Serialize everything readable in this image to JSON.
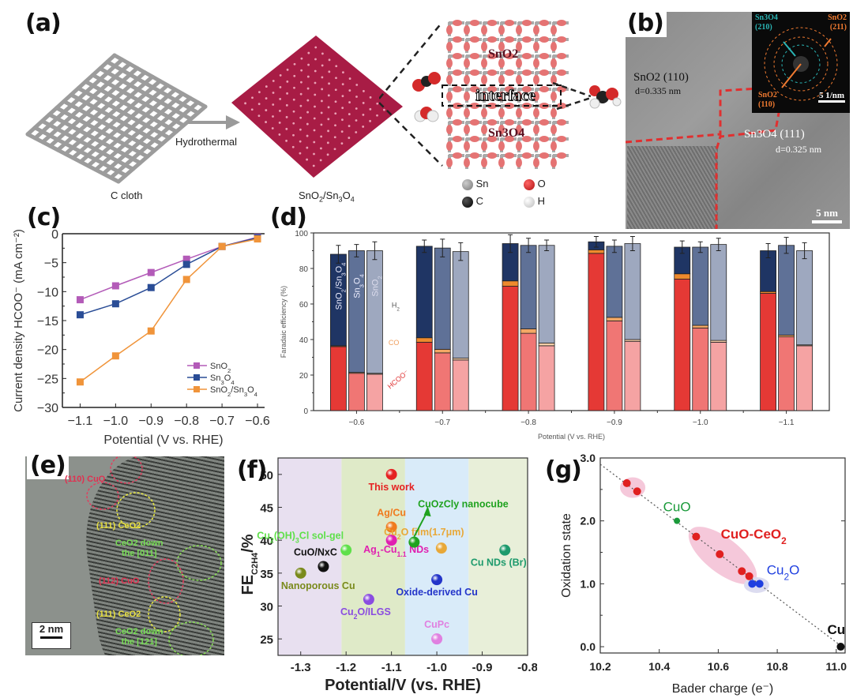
{
  "figure": {
    "panel_labels": [
      "(a)",
      "(b)",
      "(c)",
      "(d)",
      "(e)",
      "(f)",
      "(g)"
    ]
  },
  "panel_a": {
    "left_caption": "C cloth",
    "arrow_label": "Hydrothermal",
    "right_caption": "SnO2/Sn3O4",
    "structure_labels": {
      "top": "SnO2",
      "middle": "interface",
      "bottom": "Sn3O4"
    },
    "legend": [
      {
        "label": "Sn",
        "color": "#8f8f8f"
      },
      {
        "label": "O",
        "color": "#d42a2a"
      },
      {
        "label": "C",
        "color": "#111111"
      },
      {
        "label": "H",
        "color": "#eeeeee"
      }
    ]
  },
  "panel_b": {
    "labels": {
      "sno2_110": "SnO2 (110)",
      "d1": "d=0.335 nm",
      "sn3o4_111": "Sn3O4 (111)",
      "d2": "d=0.325 nm",
      "scale": "5 nm"
    },
    "inset": {
      "sn3o4_210": [
        "Sn3O4",
        "(210)"
      ],
      "sno2_211": [
        "SnO2",
        "(211)"
      ],
      "sno2_110": [
        "SnO2",
        "(110)"
      ],
      "scale": "5 1/nm"
    }
  },
  "panel_e": {
    "labels": [
      "(110) CuO",
      "(111) CeO2",
      "CeO2 down",
      "the [011]",
      "(112) CuO",
      "(111) CeO2",
      "CeO2 down",
      "the [121]"
    ],
    "scale": "2 nm"
  },
  "chart_data": [
    {
      "id": "c",
      "type": "line",
      "xlabel": "Potential (V vs. RHE)",
      "ylabel": "Current density HCOO⁻ (mA cm⁻²)",
      "x": [
        -1.1,
        -1.0,
        -0.9,
        -0.8,
        -0.7,
        -0.6
      ],
      "xlim": [
        -1.15,
        -0.58
      ],
      "ylim": [
        -30,
        0
      ],
      "xticks": [
        "-1.1",
        "-1.0",
        "-0.9",
        "-0.8",
        "-0.7",
        "-0.6"
      ],
      "yticks": [
        "0",
        "-5",
        "-10",
        "-15",
        "-20",
        "-25",
        "-30"
      ],
      "legend_position": "lower-right",
      "series": [
        {
          "name": "SnO2",
          "color": "#b35bb8",
          "values": [
            -11.4,
            -9.0,
            -6.7,
            -4.4,
            -2.2,
            -0.6
          ]
        },
        {
          "name": "Sn3O4",
          "color": "#2a4d96",
          "values": [
            -14.0,
            -12.1,
            -9.3,
            -5.3,
            -2.2,
            -0.7
          ]
        },
        {
          "name": "SnO2/Sn3O4",
          "color": "#f0943a",
          "values": [
            -25.6,
            -21.1,
            -16.8,
            -7.9,
            -2.2,
            -0.9
          ]
        }
      ]
    },
    {
      "id": "d",
      "type": "bar",
      "stacked": true,
      "xlabel": "Potential (V vs. RHE)",
      "ylabel": "Faradaic efficiency (%)",
      "categories": [
        "-0.6",
        "-0.7",
        "-0.8",
        "-0.9",
        "-1.0",
        "-1.1"
      ],
      "ylim": [
        0,
        100
      ],
      "yticks": [
        "0",
        "20",
        "40",
        "60",
        "80",
        "100"
      ],
      "samples": [
        "SnO2/Sn3O4",
        "Sn3O4",
        "SnO2"
      ],
      "annotations": {
        "h2": "H2",
        "co": "CO",
        "hcoo": "HCOO⁻"
      },
      "series": {
        "HCOO": {
          "SnO2/Sn3O4": [
            36,
            38.5,
            70,
            88.5,
            74,
            66
          ],
          "Sn3O4": [
            21,
            32.5,
            43.5,
            50.5,
            46.5,
            41.5
          ],
          "SnO2": [
            20.5,
            28.5,
            36.5,
            39,
            38.5,
            36.5
          ]
        },
        "CO": {
          "SnO2/Sn3O4": [
            0.5,
            2.5,
            3,
            2,
            3,
            1
          ],
          "Sn3O4": [
            0.5,
            2,
            2.5,
            2,
            1.5,
            1
          ],
          "SnO2": [
            0.5,
            1,
            1.5,
            1,
            1,
            0.5
          ]
        },
        "H2": {
          "SnO2/Sn3O4": [
            51.5,
            51.5,
            21,
            4.5,
            15,
            23
          ],
          "Sn3O4": [
            68.5,
            57,
            47,
            40,
            44,
            50.5
          ],
          "SnO2": [
            69,
            60,
            55,
            54,
            54,
            53
          ]
        },
        "error": {
          "SnO2/Sn3O4": [
            5,
            3.5,
            5,
            3,
            3.5,
            4
          ],
          "Sn3O4": [
            3.5,
            5,
            4,
            3.5,
            3,
            4.5
          ],
          "SnO2": [
            5,
            5,
            3,
            4,
            3.5,
            4.5
          ]
        }
      },
      "colors": {
        "HCOO": {
          "SnO2/Sn3O4": "#e53935",
          "Sn3O4": "#f07674",
          "SnO2": "#f5a3a3"
        },
        "CO": {
          "SnO2/Sn3O4": "#ee8a2d",
          "Sn3O4": "#f3a865",
          "SnO2": "#f8cfa8"
        },
        "H2": {
          "SnO2/Sn3O4": "#1f3564",
          "Sn3O4": "#5f7197",
          "SnO2": "#9ea8bf"
        }
      }
    },
    {
      "id": "f",
      "type": "scatter",
      "xlabel": "Potential/V (vs. RHE)",
      "ylabel": "FE C2H4 /%",
      "xlim": [
        -1.35,
        -0.8
      ],
      "ylim": [
        22.5,
        52.5
      ],
      "xticks": [
        "-1.3",
        "-1.2",
        "-1.1",
        "-1.0",
        "-0.9",
        "-0.8"
      ],
      "yticks": [
        "25",
        "30",
        "35",
        "40",
        "45",
        "50"
      ],
      "bands": [
        {
          "from": -1.35,
          "to": -1.21,
          "color": "#e8e0f0"
        },
        {
          "from": -1.21,
          "to": -1.07,
          "color": "#dfeac8"
        },
        {
          "from": -1.07,
          "to": -0.93,
          "color": "#d9ebf9"
        },
        {
          "from": -0.93,
          "to": -0.8,
          "color": "#e8efd9"
        }
      ],
      "points": [
        {
          "label": "This work",
          "x": -1.1,
          "y": 50,
          "color": "#e52222"
        },
        {
          "label": "Ag/Cu",
          "x": -1.1,
          "y": 42,
          "color": "#f07a1e"
        },
        {
          "label": "Ag1-Cu1.1 NDs",
          "x": -1.1,
          "y": 40,
          "color": "#e020b0"
        },
        {
          "label": "CuOxCly nanocube",
          "x": -1.05,
          "y": 39.7,
          "color": "#1fa21f"
        },
        {
          "label": "Cu2O film(1.7μm)",
          "x": -0.99,
          "y": 38.8,
          "color": "#e8a838"
        },
        {
          "label": "Cu2(OH)3Cl sol-gel",
          "x": -1.2,
          "y": 38.5,
          "color": "#5fe04a"
        },
        {
          "label": "Cu NDs (Br)",
          "x": -0.85,
          "y": 38.5,
          "color": "#1d9a6c"
        },
        {
          "label": "CuO/NxC",
          "x": -1.25,
          "y": 36,
          "color": "#111111"
        },
        {
          "label": "Nanoporous Cu",
          "x": -1.3,
          "y": 35,
          "color": "#7a8a1c"
        },
        {
          "label": "Oxide-derived Cu",
          "x": -1.0,
          "y": 34,
          "color": "#2435c9"
        },
        {
          "label": "Cu2O/ILGS",
          "x": -1.15,
          "y": 31,
          "color": "#8a4ce0"
        },
        {
          "label": "CuPc",
          "x": -1.0,
          "y": 25,
          "color": "#e080e0"
        }
      ]
    },
    {
      "id": "g",
      "type": "scatter",
      "xlabel": "Bader charge (e⁻)",
      "ylabel": "Oxidation state",
      "xlim": [
        10.2,
        11.03
      ],
      "ylim": [
        -0.1,
        3.0
      ],
      "xticks": [
        "10.2",
        "10.4",
        "10.6",
        "10.8",
        "11.0"
      ],
      "yticks": [
        "0.0",
        "1.0",
        "2.0",
        "3.0"
      ],
      "fit_line": {
        "from": [
          10.2,
          2.9
        ],
        "to": [
          11.02,
          0.0
        ]
      },
      "groups": [
        {
          "label": "CuO-CeO2",
          "color": "#e02020",
          "points": [
            [
              10.29,
              2.6
            ],
            [
              10.325,
              2.47
            ],
            [
              10.525,
              1.75
            ],
            [
              10.605,
              1.47
            ],
            [
              10.68,
              1.2
            ],
            [
              10.705,
              1.12
            ]
          ]
        },
        {
          "label": "CuO",
          "color": "#1a9a3a",
          "points": [
            [
              10.46,
              2.0
            ]
          ]
        },
        {
          "label": "Cu2O",
          "color": "#2040e0",
          "points": [
            [
              10.715,
              1.0
            ],
            [
              10.74,
              1.0
            ]
          ]
        },
        {
          "label": "Cu",
          "color": "#111111",
          "points": [
            [
              11.015,
              0.0
            ]
          ]
        }
      ]
    }
  ]
}
